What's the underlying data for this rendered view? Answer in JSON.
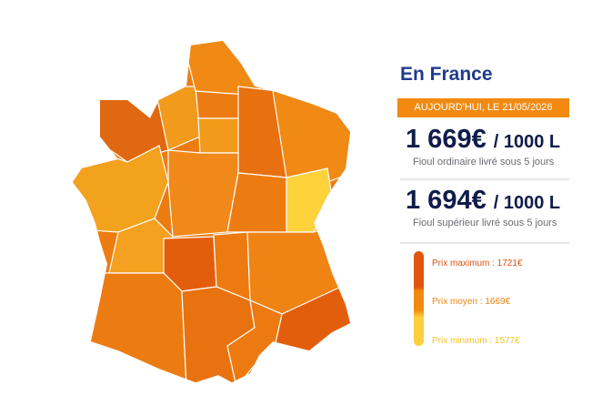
{
  "header": {
    "title": "En France",
    "date": "AUJOURD'HUI, LE 21/05/2026"
  },
  "prices": [
    {
      "value": "1 669€",
      "unit": "/ 1000 L",
      "description": "Fioul ordinaire livré sous 5 jours"
    },
    {
      "value": "1 694€",
      "unit": "/ 1000 L",
      "description": "Fioul supérieur livré sous 5 jours"
    }
  ],
  "legend": [
    "Prix maximum : 1721€",
    "Prix moyen : 1669€",
    "Prix minimum : 1577€"
  ]
}
